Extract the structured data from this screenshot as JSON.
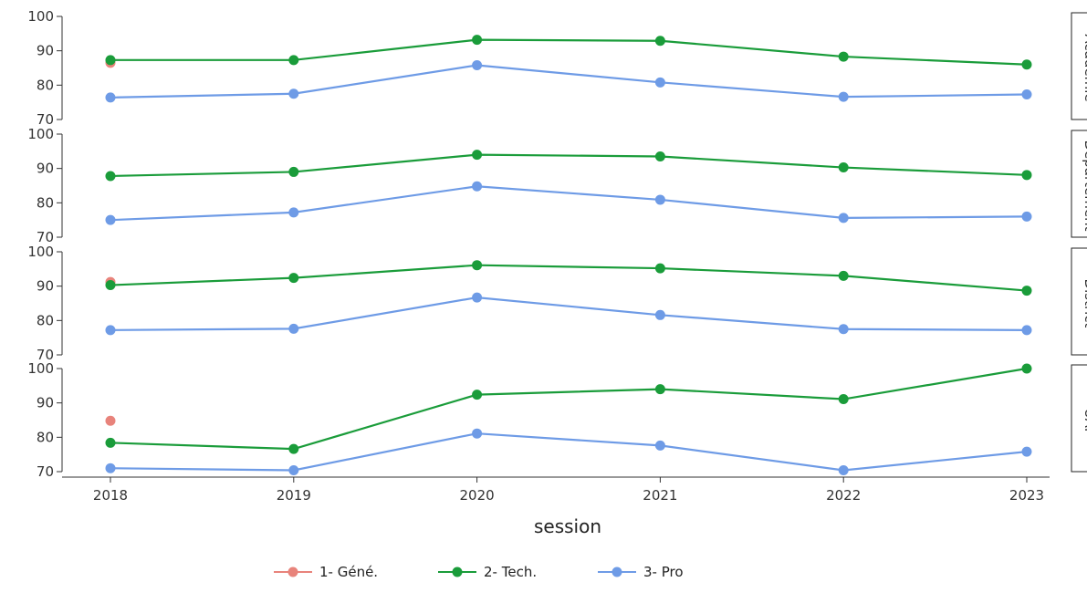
{
  "chart_data": {
    "type": "line",
    "xlabel": "session",
    "x": [
      "2018",
      "2019",
      "2020",
      "2021",
      "2022",
      "2023"
    ],
    "ylim": [
      70,
      100
    ],
    "yticks": [
      70,
      80,
      90,
      100
    ],
    "grid": false,
    "legend_position": "bottom",
    "series_meta": [
      {
        "name": "1- Géné.",
        "color": "#e8837b"
      },
      {
        "name": "2- Tech.",
        "color": "#1a9c3a"
      },
      {
        "name": "3- Pro",
        "color": "#6e9be6"
      }
    ],
    "facets": [
      {
        "label": "Académie",
        "series": [
          {
            "name": "1- Géné.",
            "values": [
              86.5,
              null,
              null,
              null,
              null,
              null
            ]
          },
          {
            "name": "2- Tech.",
            "values": [
              87.3,
              87.3,
              93.2,
              92.9,
              88.3,
              86.0
            ]
          },
          {
            "name": "3- Pro",
            "values": [
              76.4,
              77.5,
              85.8,
              80.8,
              76.6,
              77.3
            ]
          }
        ]
      },
      {
        "label": "Département",
        "series": [
          {
            "name": "1- Géné.",
            "values": [
              null,
              null,
              null,
              null,
              null,
              null
            ]
          },
          {
            "name": "2- Tech.",
            "values": [
              87.8,
              89.0,
              94.0,
              93.5,
              90.3,
              88.1
            ]
          },
          {
            "name": "3- Pro",
            "values": [
              75.0,
              77.2,
              84.8,
              80.9,
              75.6,
              76.0
            ]
          }
        ]
      },
      {
        "label": "District",
        "series": [
          {
            "name": "1- Géné.",
            "values": [
              91.2,
              null,
              null,
              null,
              null,
              null
            ]
          },
          {
            "name": "2- Tech.",
            "values": [
              90.3,
              92.4,
              96.1,
              95.2,
              93.0,
              88.7
            ]
          },
          {
            "name": "3- Pro",
            "values": [
              77.2,
              77.6,
              86.7,
              81.6,
              77.5,
              77.2
            ]
          }
        ]
      },
      {
        "label": "UAI",
        "series": [
          {
            "name": "1- Géné.",
            "values": [
              84.8,
              null,
              null,
              null,
              null,
              null
            ]
          },
          {
            "name": "2- Tech.",
            "values": [
              78.4,
              76.6,
              92.4,
              94.0,
              91.1,
              100.0
            ]
          },
          {
            "name": "3- Pro",
            "values": [
              71.0,
              70.4,
              81.1,
              77.6,
              70.4,
              75.8
            ]
          }
        ]
      }
    ]
  }
}
